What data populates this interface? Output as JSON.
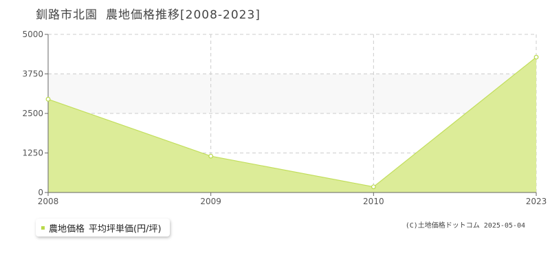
{
  "title": {
    "place": "釧路市北園",
    "subject": "農地価格推移[2008-2023]"
  },
  "legend": {
    "series_label": "農地価格",
    "unit_label": "平均坪単価(円/坪)"
  },
  "copyright": "(C)土地価格ドットコム 2025-05-04",
  "colors": {
    "fill": "#dcec98",
    "line": "#c2de5c",
    "marker": "#b9d94a",
    "band": "#f8f8f8",
    "grid": "#cccccc"
  },
  "chart_data": {
    "type": "area",
    "categories": [
      "2008",
      "2009",
      "2010",
      "2023"
    ],
    "series": [
      {
        "name": "農地価格",
        "values": [
          2950,
          1150,
          180,
          4280
        ]
      }
    ],
    "y_ticks": [
      0,
      1250,
      2500,
      3750,
      5000
    ],
    "ylim": [
      0,
      5000
    ],
    "grid": true,
    "legend_position": "bottom-left"
  }
}
